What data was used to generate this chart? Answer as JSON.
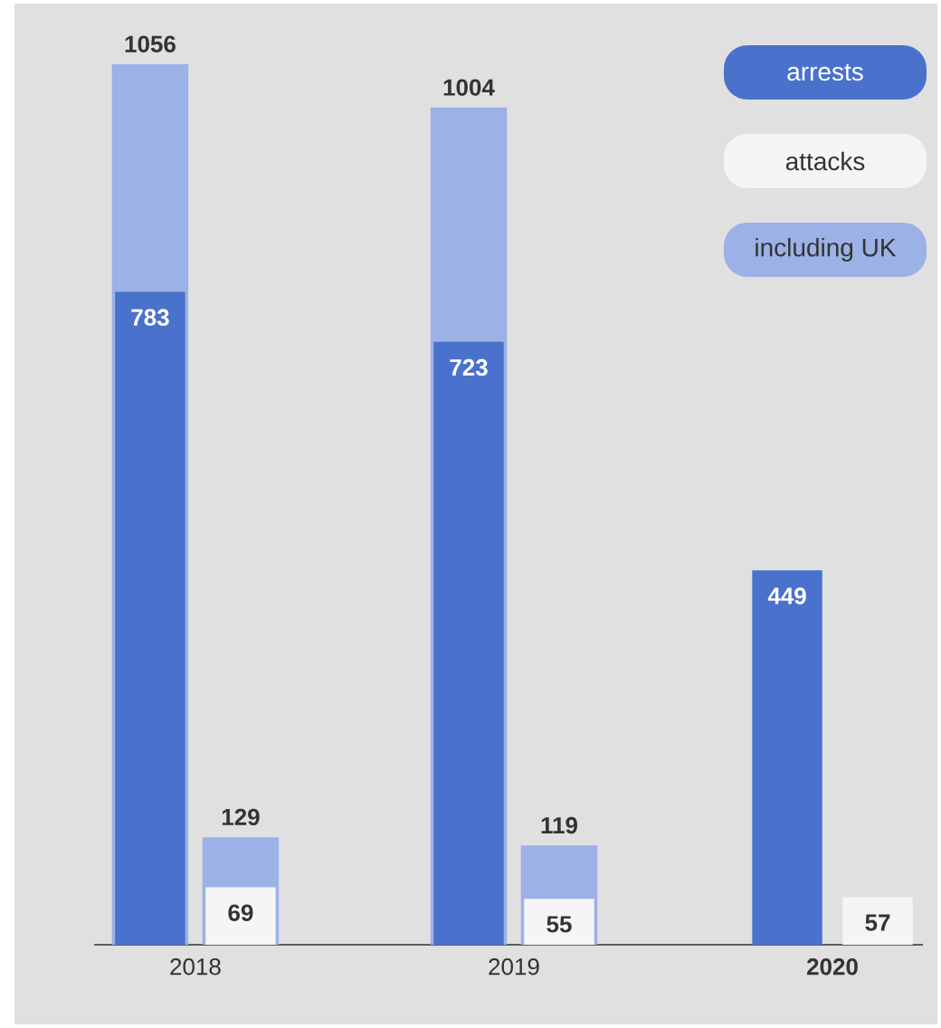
{
  "chart_data": {
    "type": "bar",
    "categories": [
      "2018",
      "2019",
      "**2020**"
    ],
    "ylim": [
      0,
      1120
    ],
    "legend": "top right",
    "series": [
      {
        "name": "arrests",
        "color": "#4a72cc",
        "values": [
          783,
          723,
          449
        ],
        "value_labels": [
          "783",
          "723",
          "449"
        ]
      },
      {
        "name": "attacks",
        "color": "#f5f5f5",
        "values": [
          69,
          55,
          57
        ],
        "value_labels": [
          "69",
          "55",
          "57"
        ]
      },
      {
        "name": "including UK",
        "color": "#9cb1e6",
        "values": [
          1056,
          1004,
          null
        ],
        "value_labels": [
          "1056",
          "1004",
          null
        ]
      },
      {
        "color": "#9cb1e6",
        "values": [
          129,
          119,
          null
        ],
        "value_labels": [
          "129",
          "119",
          null
        ]
      }
    ]
  }
}
